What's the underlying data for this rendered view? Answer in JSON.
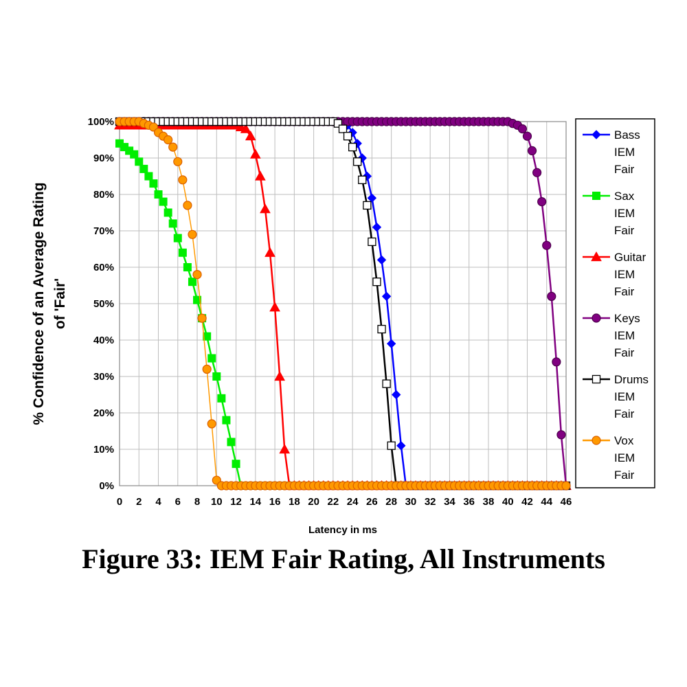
{
  "figure": {
    "caption": "Figure 33: IEM Fair Rating, All Instruments"
  },
  "chart_data": {
    "type": "line",
    "title": "",
    "xlabel": "Latency in ms",
    "ylabel_lines": [
      "% Confidence of an Average Rating",
      "of 'Fair'"
    ],
    "xlim": [
      0,
      46
    ],
    "ylim": [
      0,
      100
    ],
    "x_ticks": [
      "0",
      "2",
      "4",
      "6",
      "8",
      "10",
      "12",
      "14",
      "16",
      "18",
      "20",
      "22",
      "24",
      "26",
      "28",
      "30",
      "32",
      "34",
      "36",
      "38",
      "40",
      "42",
      "44",
      "46"
    ],
    "y_ticks": [
      "0%",
      "10%",
      "20%",
      "30%",
      "40%",
      "50%",
      "60%",
      "70%",
      "80%",
      "90%",
      "100%"
    ],
    "grid": true,
    "legend_position": "right",
    "series": [
      {
        "name": "Bass IEM Fair",
        "legend_lines": [
          "Bass",
          "IEM",
          "Fair"
        ],
        "color": "#0000ff",
        "marker": "diamond",
        "x": [
          0,
          22,
          23,
          23.5,
          24,
          24.5,
          25,
          25.5,
          26,
          26.5,
          27,
          27.5,
          28,
          28.5,
          29,
          29.5,
          46
        ],
        "y": [
          100,
          100,
          99.5,
          99,
          97,
          94,
          90,
          85,
          79,
          71,
          62,
          52,
          39,
          25,
          11,
          0,
          0
        ]
      },
      {
        "name": "Sax IEM Fair",
        "legend_lines": [
          "Sax",
          "IEM",
          "Fair"
        ],
        "color": "#00ee00",
        "marker": "square",
        "x": [
          0,
          0.5,
          1,
          1.5,
          2,
          2.5,
          3,
          3.5,
          4,
          4.5,
          5,
          5.5,
          6,
          6.5,
          7,
          7.5,
          8,
          8.5,
          9,
          9.5,
          10,
          10.5,
          11,
          11.5,
          12,
          12.5,
          46
        ],
        "y": [
          94,
          93,
          92,
          91,
          89,
          87,
          85,
          83,
          80,
          78,
          75,
          72,
          68,
          64,
          60,
          56,
          51,
          46,
          41,
          35,
          30,
          24,
          18,
          12,
          6,
          0,
          0
        ]
      },
      {
        "name": "Guitar IEM Fair",
        "legend_lines": [
          "Guitar",
          "IEM",
          "Fair"
        ],
        "color": "#ff0000",
        "marker": "triangle",
        "x": [
          0,
          12,
          12.5,
          13,
          13.5,
          14,
          14.5,
          15,
          15.5,
          16,
          16.5,
          17,
          17.5,
          46
        ],
        "y": [
          99,
          99,
          98.5,
          98,
          96,
          91,
          85,
          76,
          64,
          49,
          30,
          10,
          0,
          0
        ]
      },
      {
        "name": "Keys IEM Fair",
        "legend_lines": [
          "Keys",
          "IEM",
          "Fair"
        ],
        "color": "#800080",
        "marker": "circle",
        "x": [
          0,
          40,
          40.5,
          41,
          41.5,
          42,
          42.5,
          43,
          43.5,
          44,
          44.5,
          45,
          45.5,
          46
        ],
        "y": [
          100,
          100,
          99.5,
          99,
          98,
          96,
          92,
          86,
          78,
          66,
          52,
          34,
          14,
          0
        ]
      },
      {
        "name": "Drums IEM Fair",
        "legend_lines": [
          "Drums",
          "IEM",
          "Fair"
        ],
        "color": "#000000",
        "marker": "open-square",
        "x": [
          0,
          22,
          22.5,
          23,
          23.5,
          24,
          24.5,
          25,
          25.5,
          26,
          26.5,
          27,
          27.5,
          28,
          28.5,
          46
        ],
        "y": [
          100,
          100,
          99.5,
          98,
          96,
          93,
          89,
          84,
          77,
          67,
          56,
          43,
          28,
          11,
          0,
          0
        ]
      },
      {
        "name": "Vox IEM Fair",
        "legend_lines": [
          "Vox",
          "IEM",
          "Fair"
        ],
        "color": "#ff9900",
        "marker": "circle",
        "x": [
          0,
          0.5,
          1,
          1.5,
          2,
          2.5,
          3,
          3.5,
          4,
          4.5,
          5,
          5.5,
          6,
          6.5,
          7,
          7.5,
          8,
          8.5,
          9,
          9.5,
          10,
          10.5,
          11,
          46
        ],
        "y": [
          100,
          100,
          100,
          100,
          100,
          99.5,
          99,
          98.5,
          97,
          96,
          95,
          93,
          89,
          84,
          77,
          69,
          58,
          46,
          32,
          17,
          1.5,
          0,
          0,
          0
        ]
      }
    ]
  }
}
